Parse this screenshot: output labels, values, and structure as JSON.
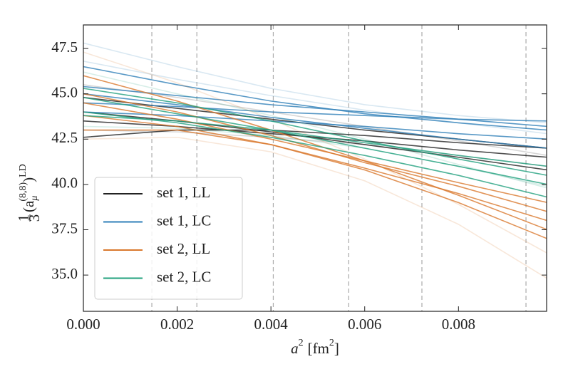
{
  "chart_data": {
    "type": "line",
    "xlabel": {
      "base": "a",
      "sup": "2",
      "unit": "[fm",
      "unit_sup": "2",
      "close": "]"
    },
    "ylabel": {
      "num": "1",
      "den": "3",
      "open": "(a",
      "sub": "μ",
      "sup": "(8,8)",
      "close": ")",
      "outer_sup": "LD"
    },
    "x": [
      0,
      0.002,
      0.004,
      0.006,
      0.008,
      0.0099
    ],
    "xlim": [
      0,
      0.00988
    ],
    "ylim": [
      33.0,
      48.8
    ],
    "xticks": [
      {
        "value": 0,
        "label": "0.000"
      },
      {
        "value": 0.002,
        "label": "0.002"
      },
      {
        "value": 0.004,
        "label": "0.004"
      },
      {
        "value": 0.006,
        "label": "0.006"
      },
      {
        "value": 0.008,
        "label": "0.008"
      }
    ],
    "yticks": [
      {
        "value": 35.0,
        "label": "35.0"
      },
      {
        "value": 37.5,
        "label": "37.5"
      },
      {
        "value": 40.0,
        "label": "40.0"
      },
      {
        "value": 42.5,
        "label": "42.5"
      },
      {
        "value": 45.0,
        "label": "45.0"
      },
      {
        "value": 47.5,
        "label": "47.5"
      }
    ],
    "vlines": [
      0.00146,
      0.00242,
      0.00405,
      0.00566,
      0.00722,
      0.00944
    ],
    "legend": "lower left",
    "series": [
      {
        "name": "set 1, LL",
        "color": "#222222",
        "lines": [
          [
            44.8,
            44.2,
            43.6,
            43.0,
            42.5,
            42.0
          ],
          [
            43.5,
            43.2,
            42.8,
            42.4,
            41.9,
            41.5
          ],
          [
            42.6,
            43.0,
            43.0,
            42.7,
            42.3,
            42.0
          ],
          [
            44.0,
            43.5,
            42.9,
            42.2,
            41.5,
            40.8
          ]
        ],
        "faint": [
          [
            45.5,
            44.8,
            44.0,
            43.2,
            42.4,
            41.6
          ],
          [
            43.0,
            42.9,
            42.6,
            42.2,
            41.6,
            41.0
          ]
        ]
      },
      {
        "name": "set 1, LC",
        "color": "#2f7fb8",
        "lines": [
          [
            45.4,
            44.9,
            44.4,
            44.0,
            43.6,
            43.2
          ],
          [
            46.5,
            45.5,
            44.6,
            43.9,
            43.4,
            43.0
          ],
          [
            44.5,
            44.3,
            44.0,
            43.8,
            43.6,
            43.5
          ],
          [
            45.0,
            44.4,
            43.7,
            43.1,
            42.5,
            42.0
          ],
          [
            44.0,
            43.8,
            43.5,
            43.2,
            42.8,
            42.5
          ]
        ],
        "faint": [
          [
            47.8,
            46.5,
            45.3,
            44.4,
            43.8,
            43.4
          ],
          [
            46.8,
            45.8,
            44.9,
            44.1,
            43.4,
            42.8
          ]
        ]
      },
      {
        "name": "set 2, LL",
        "color": "#d9782d",
        "lines": [
          [
            46.0,
            44.6,
            43.0,
            41.3,
            39.4,
            37.5
          ],
          [
            44.5,
            43.6,
            42.5,
            41.3,
            40.1,
            39.0
          ],
          [
            43.8,
            43.2,
            42.2,
            40.9,
            39.5,
            38.0
          ],
          [
            43.0,
            43.0,
            42.2,
            40.8,
            39.0,
            37.0
          ],
          [
            45.0,
            44.0,
            42.7,
            41.2,
            39.9,
            38.5
          ]
        ],
        "faint": [
          [
            47.3,
            45.6,
            43.6,
            41.4,
            38.9,
            36.2
          ],
          [
            42.5,
            42.6,
            41.8,
            40.2,
            37.8,
            34.8
          ]
        ]
      },
      {
        "name": "set 2, LC",
        "color": "#22a07e",
        "lines": [
          [
            45.3,
            44.5,
            43.5,
            42.4,
            41.4,
            40.5
          ],
          [
            44.0,
            43.4,
            42.6,
            41.6,
            40.5,
            39.3
          ],
          [
            43.8,
            43.5,
            43.0,
            42.3,
            41.6,
            41.0
          ],
          [
            44.8,
            43.9,
            43.0,
            42.0,
            41.0,
            40.0
          ]
        ],
        "faint": [
          [
            46.2,
            45.0,
            43.8,
            42.5,
            41.1,
            39.8
          ],
          [
            43.2,
            43.1,
            42.7,
            42.0,
            41.0,
            39.9
          ]
        ]
      }
    ]
  }
}
